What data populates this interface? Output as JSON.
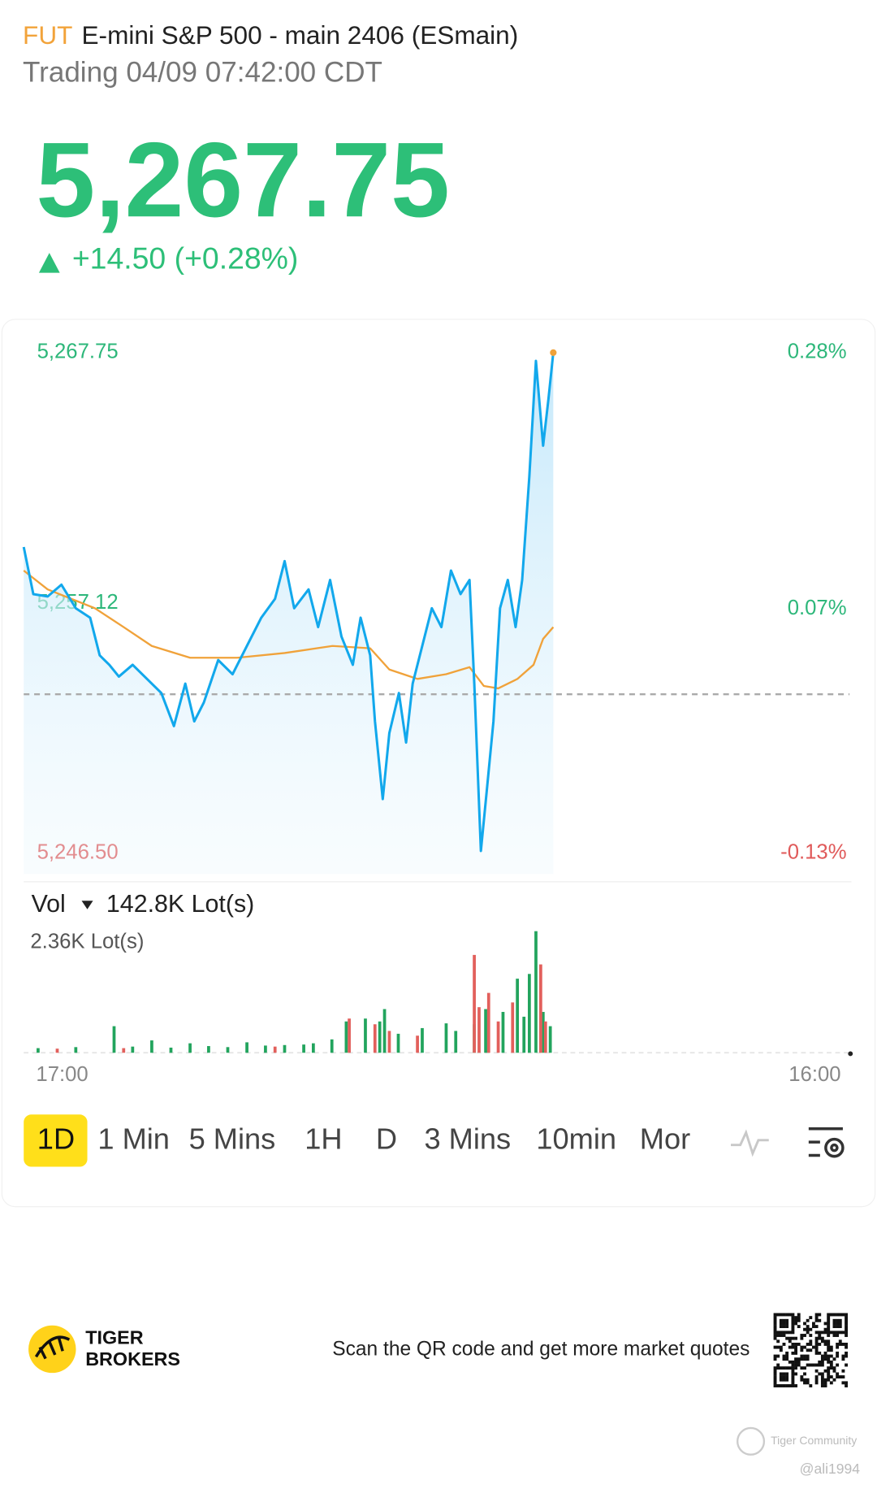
{
  "header": {
    "badge": "FUT",
    "title": "E-mini S&P 500 - main 2406 (ESmain)",
    "status": "Trading 04/09 07:42:00 CDT"
  },
  "quote": {
    "price": "5,267.75",
    "change": "+14.50 (+0.28%)",
    "color": "#2dbf78"
  },
  "chart_data": [
    {
      "type": "line",
      "up_color": "#2db77a",
      "down_color": "#e05a5a",
      "ylim": [
        5246.5,
        5267.75
      ],
      "yticks": [
        {
          "value": 5267.75,
          "label": "5,267.75"
        },
        {
          "value": 5257.12,
          "label": "5,257.12"
        },
        {
          "value": 5246.5,
          "label": "5,246.50"
        }
      ],
      "y2lim": [
        -0.13,
        0.28
      ],
      "y2ticks": [
        {
          "value": 0.28,
          "label": "0.28%"
        },
        {
          "value": 0.07,
          "label": "0.07%"
        },
        {
          "value": -0.13,
          "label": "-0.13%"
        }
      ],
      "xlim": [
        0,
        1380
      ],
      "reference_line": 5253.25,
      "series": [
        {
          "color": "#12a8ec",
          "x": [
            0,
            16,
            40,
            63,
            87,
            111,
            127,
            143,
            159,
            182,
            206,
            230,
            251,
            270,
            285,
            301,
            325,
            349,
            373,
            397,
            420,
            436,
            452,
            476,
            492,
            512,
            531,
            550,
            563,
            579,
            587,
            600,
            611,
            627,
            639,
            650,
            666,
            682,
            698,
            714,
            730,
            745,
            753,
            764,
            774,
            785,
            796,
            809,
            822,
            833,
            845,
            856,
            868,
            877,
            885
          ],
          "values": [
            5259.5,
            5257.5,
            5257.4,
            5257.9,
            5256.9,
            5256.5,
            5254.9,
            5254.5,
            5254.0,
            5254.5,
            5253.9,
            5253.3,
            5251.9,
            5253.7,
            5252.1,
            5252.9,
            5254.7,
            5254.1,
            5255.3,
            5256.5,
            5257.3,
            5258.9,
            5256.9,
            5257.7,
            5256.1,
            5258.1,
            5255.7,
            5254.5,
            5256.5,
            5254.9,
            5252.1,
            5248.8,
            5251.6,
            5253.3,
            5251.2,
            5253.7,
            5255.3,
            5256.9,
            5256.1,
            5258.5,
            5257.5,
            5258.1,
            5253.7,
            5246.6,
            5249.2,
            5252.1,
            5256.9,
            5258.1,
            5256.1,
            5258.1,
            5262.5,
            5267.4,
            5263.8,
            5265.8,
            5267.75
          ]
        },
        {
          "color": "#f0a23a",
          "x": [
            0,
            40,
            119,
            167,
            214,
            278,
            357,
            436,
            516,
            579,
            611,
            658,
            706,
            745,
            769,
            793,
            825,
            852,
            868,
            885
          ],
          "values": [
            5258.5,
            5257.7,
            5256.9,
            5256.1,
            5255.3,
            5254.8,
            5254.8,
            5255.0,
            5255.3,
            5255.2,
            5254.3,
            5253.9,
            5254.1,
            5254.4,
            5253.6,
            5253.5,
            5253.9,
            5254.5,
            5255.6,
            5256.1
          ]
        }
      ]
    },
    {
      "type": "bar",
      "title": "Vol",
      "total": "142.8K Lot(s)",
      "ylim": [
        0,
        2360
      ],
      "yticks": [
        {
          "value": 2360,
          "label": "2.36K Lot(s)"
        }
      ],
      "xlim": [
        0,
        1380
      ],
      "xticks": [
        {
          "value": 0,
          "label": "17:00"
        },
        {
          "value": 1380,
          "label": "16:00"
        }
      ],
      "series": [
        {
          "color": "#22a45d",
          "x": [
            24,
            87,
            151,
            182,
            214,
            246,
            278,
            309,
            341,
            373,
            404,
            436,
            468,
            484,
            515,
            539,
            571,
            595,
            603,
            626,
            666,
            706,
            722,
            753,
            772,
            801,
            825,
            836,
            845,
            856,
            868,
            880
          ],
          "values": [
            90,
            110,
            516,
            120,
            240,
            100,
            184,
            130,
            110,
            203,
            140,
            150,
            160,
            184,
            260,
            608,
            664,
            608,
            848,
            369,
            479,
            571,
            424,
            553,
            848,
            793,
            1438,
            700,
            1530,
            2360,
            793,
            516
          ]
        },
        {
          "color": "#e2605c",
          "x": [
            56,
            167,
            420,
            544,
            587,
            611,
            658,
            753,
            761,
            777,
            793,
            817,
            864,
            872
          ],
          "values": [
            80,
            90,
            120,
            664,
            553,
            424,
            332,
            1899,
            885,
            1162,
            608,
            977,
            1715,
            608
          ]
        }
      ]
    }
  ],
  "tabs": [
    "1D",
    "1 Min",
    "5 Mins",
    "1H",
    "D",
    "3 Mins",
    "10min",
    "Mor"
  ],
  "footer": {
    "brand_line1": "TIGER",
    "brand_line2": "BROKERS",
    "promo": "Scan the QR code and get more market quotes",
    "watermark": "Tiger Community",
    "user": "@ali1994"
  }
}
